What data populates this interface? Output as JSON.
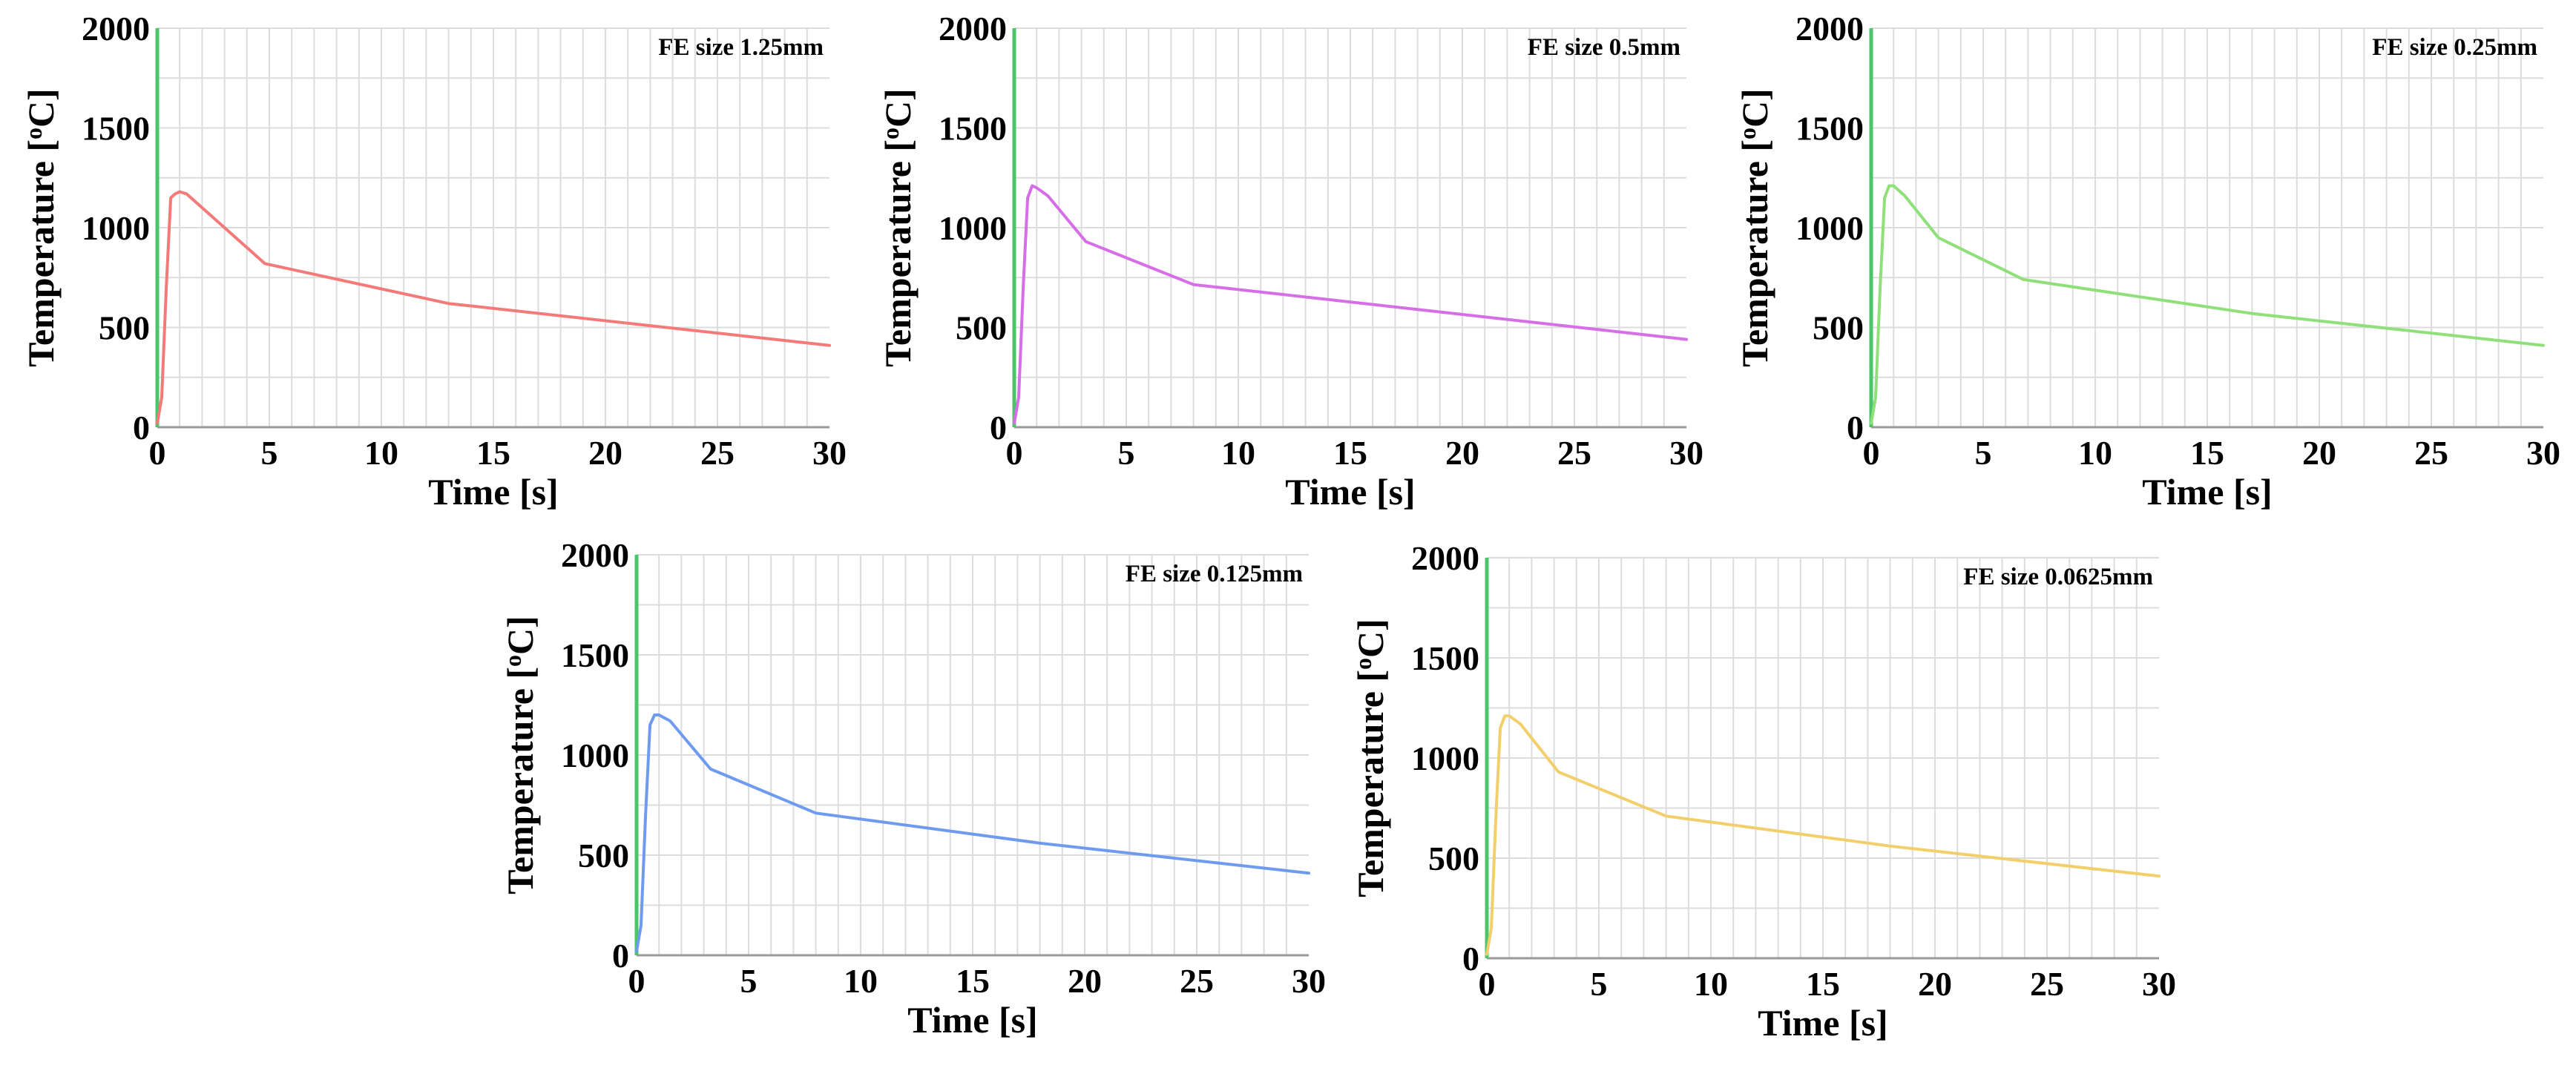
{
  "figure": {
    "description_free": true
  },
  "chart_data": [
    {
      "type": "line",
      "title": "FE size 1.25mm",
      "xlabel": "Time [s]",
      "ylabel": "Temperature [",
      "ylabel_sup": "o",
      "ylabel_end": "C]",
      "xlim": [
        0,
        30
      ],
      "ylim": [
        0,
        2000
      ],
      "x_ticks": [
        0,
        5,
        10,
        15,
        20,
        25,
        30
      ],
      "x_tick_labels": [
        "0",
        "5",
        "10",
        "15",
        "20",
        "25",
        "30"
      ],
      "y_ticks": [
        0,
        500,
        1000,
        1500,
        2000
      ],
      "y_tick_labels": [
        "0",
        "500",
        "1000",
        "1500",
        "2000"
      ],
      "grid": true,
      "color": "#f47a7a",
      "series": [
        {
          "name": "FE size 1.25mm",
          "x": [
            0,
            0.2,
            0.4,
            0.6,
            0.8,
            1.0,
            1.3,
            4.8,
            13,
            30
          ],
          "y": [
            20,
            150,
            700,
            1150,
            1170,
            1180,
            1170,
            820,
            620,
            410
          ]
        }
      ]
    },
    {
      "type": "line",
      "title": "FE size 0.5mm",
      "xlabel": "Time [s]",
      "ylabel": "Temperature [",
      "ylabel_sup": "o",
      "ylabel_end": "C]",
      "xlim": [
        0,
        30
      ],
      "ylim": [
        0,
        2000
      ],
      "x_ticks": [
        0,
        5,
        10,
        15,
        20,
        25,
        30
      ],
      "x_tick_labels": [
        "0",
        "5",
        "10",
        "15",
        "20",
        "25",
        "30"
      ],
      "y_ticks": [
        0,
        500,
        1000,
        1500,
        2000
      ],
      "y_tick_labels": [
        "0",
        "500",
        "1000",
        "1500",
        "2000"
      ],
      "grid": true,
      "color": "#d66ee8",
      "series": [
        {
          "name": "FE size 0.5mm",
          "x": [
            0,
            0.2,
            0.4,
            0.6,
            0.8,
            1.0,
            1.5,
            3.2,
            8,
            30
          ],
          "y": [
            20,
            150,
            700,
            1150,
            1210,
            1200,
            1160,
            930,
            715,
            440
          ]
        }
      ]
    },
    {
      "type": "line",
      "title": "FE size 0.25mm",
      "xlabel": "Time [s]",
      "ylabel": "Temperature [",
      "ylabel_sup": "o",
      "ylabel_end": "C]",
      "xlim": [
        0,
        30
      ],
      "ylim": [
        0,
        2000
      ],
      "x_ticks": [
        0,
        5,
        10,
        15,
        20,
        25,
        30
      ],
      "x_tick_labels": [
        "0",
        "5",
        "10",
        "15",
        "20",
        "25",
        "30"
      ],
      "y_ticks": [
        0,
        500,
        1000,
        1500,
        2000
      ],
      "y_tick_labels": [
        "0",
        "500",
        "1000",
        "1500",
        "2000"
      ],
      "grid": true,
      "color": "#8fe07a",
      "series": [
        {
          "name": "FE size 0.25mm",
          "x": [
            0,
            0.2,
            0.4,
            0.6,
            0.8,
            1.0,
            1.5,
            3.0,
            6.8,
            17,
            30
          ],
          "y": [
            20,
            150,
            700,
            1150,
            1210,
            1210,
            1160,
            950,
            740,
            570,
            410
          ]
        }
      ]
    },
    {
      "type": "line",
      "title": "FE size 0.125mm",
      "xlabel": "Time [s]",
      "ylabel": "Temperature [",
      "ylabel_sup": "o",
      "ylabel_end": "C]",
      "xlim": [
        0,
        30
      ],
      "ylim": [
        0,
        2000
      ],
      "x_ticks": [
        0,
        5,
        10,
        15,
        20,
        25,
        30
      ],
      "x_tick_labels": [
        "0",
        "5",
        "10",
        "15",
        "20",
        "25",
        "30"
      ],
      "y_ticks": [
        0,
        500,
        1000,
        1500,
        2000
      ],
      "y_tick_labels": [
        "0",
        "500",
        "1000",
        "1500",
        "2000"
      ],
      "grid": true,
      "color": "#6e9bef",
      "series": [
        {
          "name": "FE size 0.125mm",
          "x": [
            0,
            0.2,
            0.4,
            0.6,
            0.8,
            1.0,
            1.5,
            3.3,
            8,
            18,
            30
          ],
          "y": [
            20,
            150,
            700,
            1150,
            1200,
            1200,
            1170,
            930,
            710,
            560,
            410
          ]
        }
      ]
    },
    {
      "type": "line",
      "title": "FE size 0.0625mm",
      "xlabel": "Time [s]",
      "ylabel": "Temperature [",
      "ylabel_sup": "o",
      "ylabel_end": "C]",
      "xlim": [
        0,
        30
      ],
      "ylim": [
        0,
        2000
      ],
      "x_ticks": [
        0,
        5,
        10,
        15,
        20,
        25,
        30
      ],
      "x_tick_labels": [
        "0",
        "5",
        "10",
        "15",
        "20",
        "25",
        "30"
      ],
      "y_ticks": [
        0,
        500,
        1000,
        1500,
        2000
      ],
      "y_tick_labels": [
        "0",
        "500",
        "1000",
        "1500",
        "2000"
      ],
      "grid": true,
      "color": "#f2cf6a",
      "series": [
        {
          "name": "FE size 0.0625mm",
          "x": [
            0,
            0.2,
            0.4,
            0.6,
            0.8,
            1.0,
            1.5,
            3.2,
            8,
            18,
            30
          ],
          "y": [
            20,
            150,
            700,
            1150,
            1210,
            1210,
            1170,
            930,
            710,
            560,
            410
          ]
        }
      ]
    }
  ]
}
